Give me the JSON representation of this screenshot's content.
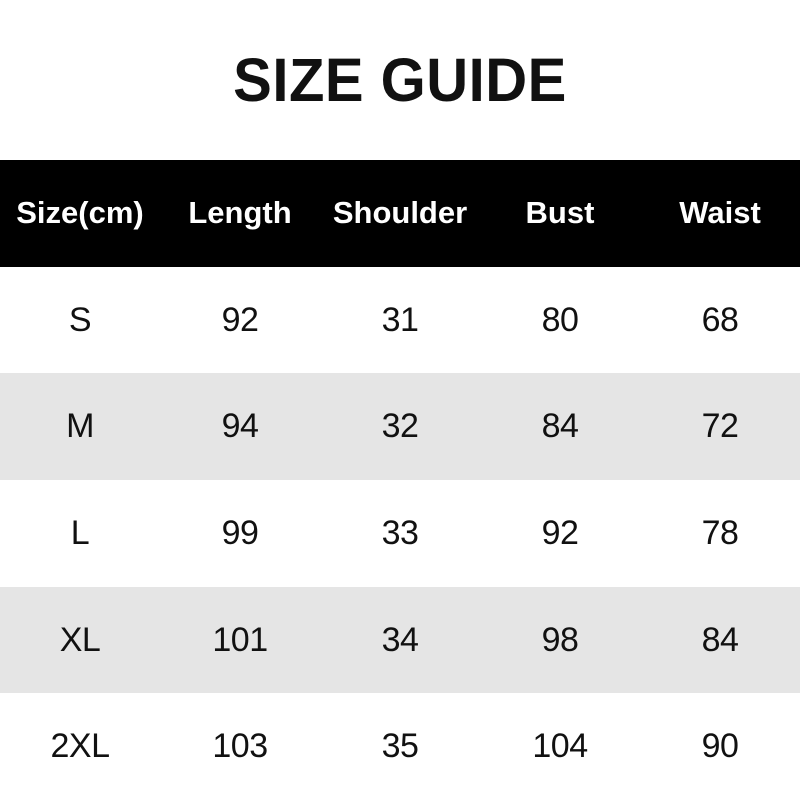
{
  "title": "SIZE GUIDE",
  "table": {
    "columns": [
      "Size(cm)",
      "Length",
      "Shoulder",
      "Bust",
      "Waist"
    ],
    "rows": [
      [
        "S",
        "92",
        "31",
        "80",
        "68"
      ],
      [
        "M",
        "94",
        "32",
        "84",
        "72"
      ],
      [
        "L",
        "99",
        "33",
        "92",
        "78"
      ],
      [
        "XL",
        "101",
        "34",
        "98",
        "84"
      ],
      [
        "2XL",
        "103",
        "35",
        "104",
        "90"
      ]
    ]
  },
  "colors": {
    "header_bg": "#000000",
    "header_text": "#ffffff",
    "row_bg": "#ffffff",
    "row_alt_bg": "#e5e5e5",
    "text": "#111111",
    "title_text": "#111111"
  }
}
